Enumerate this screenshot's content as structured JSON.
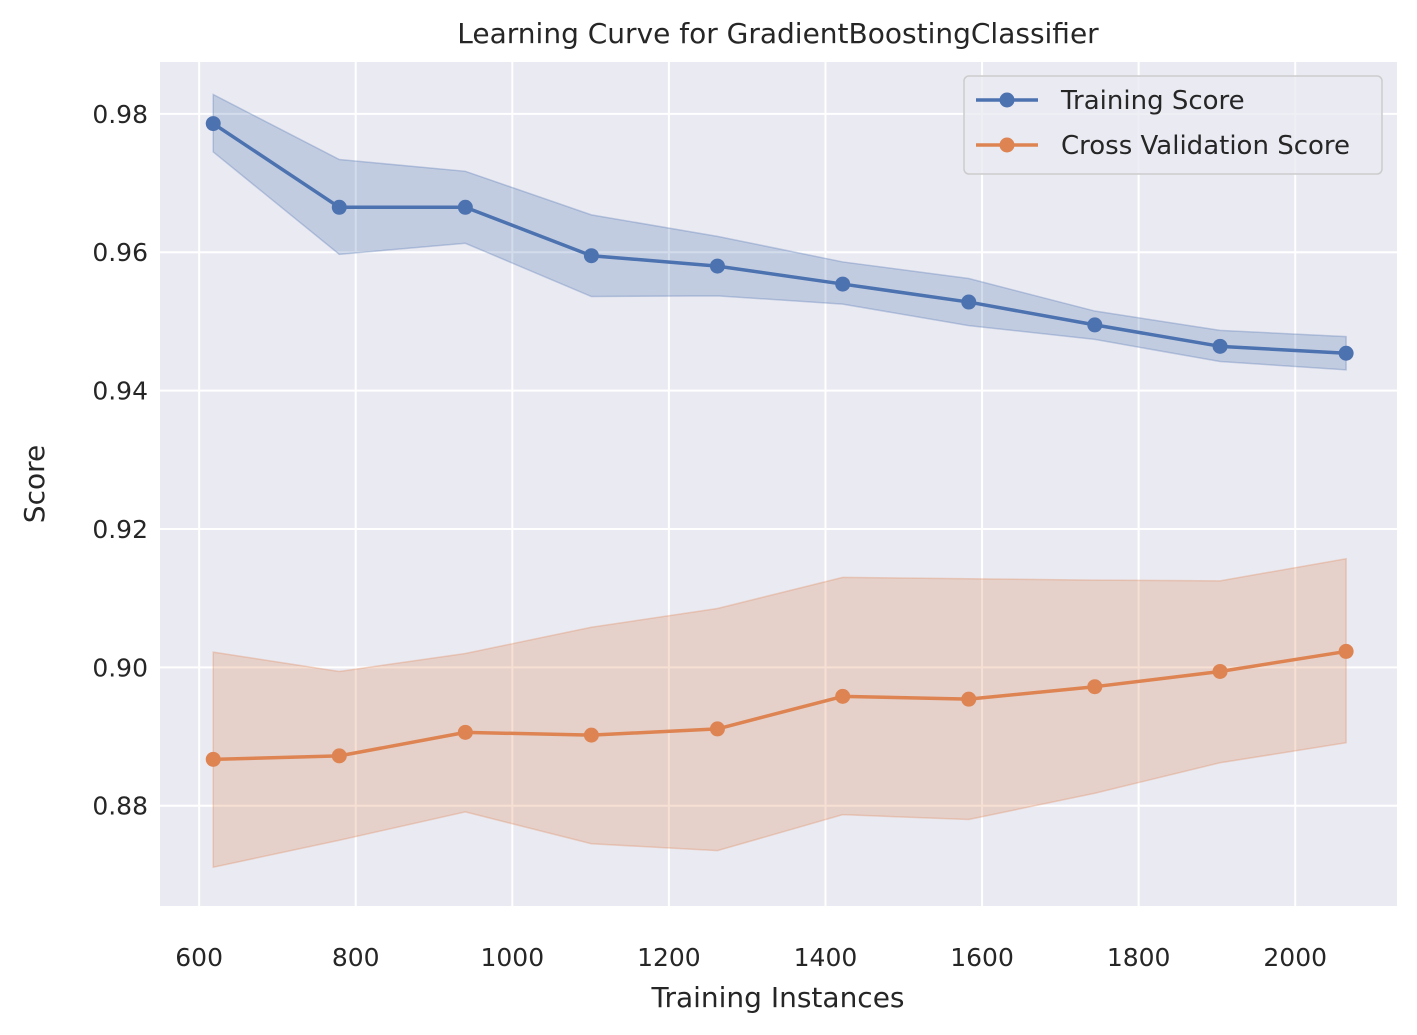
{
  "chart_data": {
    "type": "line",
    "title": "Learning Curve for GradientBoostingClassifier",
    "xlabel": "Training Instances",
    "ylabel": "Score",
    "xlim": [
      550,
      2130
    ],
    "ylim": [
      0.8655,
      0.9875
    ],
    "xticks": [
      600,
      800,
      1000,
      1200,
      1400,
      1600,
      1800,
      2000
    ],
    "xtick_labels": [
      "600",
      "800",
      "1000",
      "1200",
      "1400",
      "1600",
      "1800",
      "2000"
    ],
    "yticks": [
      0.88,
      0.9,
      0.92,
      0.94,
      0.96,
      0.98
    ],
    "ytick_labels": [
      "0.88",
      "0.90",
      "0.92",
      "0.94",
      "0.96",
      "0.98"
    ],
    "grid": true,
    "legend_position": "top-right",
    "x": [
      618,
      779,
      940,
      1101,
      1262,
      1422,
      1583,
      1744,
      1904,
      2065
    ],
    "series": [
      {
        "name": "Training Score",
        "color": "#4c72b0",
        "values": [
          0.9786,
          0.9665,
          0.9665,
          0.9595,
          0.958,
          0.9554,
          0.9528,
          0.9495,
          0.9464,
          0.9454
        ],
        "upper": [
          0.9828,
          0.9734,
          0.9717,
          0.9654,
          0.9623,
          0.9586,
          0.9562,
          0.9515,
          0.9487,
          0.9478
        ],
        "lower": [
          0.9745,
          0.9597,
          0.9613,
          0.9536,
          0.9537,
          0.9525,
          0.9494,
          0.9474,
          0.9442,
          0.943
        ]
      },
      {
        "name": "Cross Validation Score",
        "color": "#dd8452",
        "values": [
          0.8867,
          0.8872,
          0.8906,
          0.8902,
          0.8911,
          0.8958,
          0.8954,
          0.8972,
          0.8994,
          0.9023
        ],
        "upper": [
          0.9022,
          0.8994,
          0.902,
          0.9058,
          0.9085,
          0.913,
          0.9128,
          0.9126,
          0.9125,
          0.9157
        ],
        "lower": [
          0.8711,
          0.875,
          0.8791,
          0.8745,
          0.8735,
          0.8787,
          0.878,
          0.8818,
          0.8862,
          0.8891
        ]
      }
    ]
  }
}
